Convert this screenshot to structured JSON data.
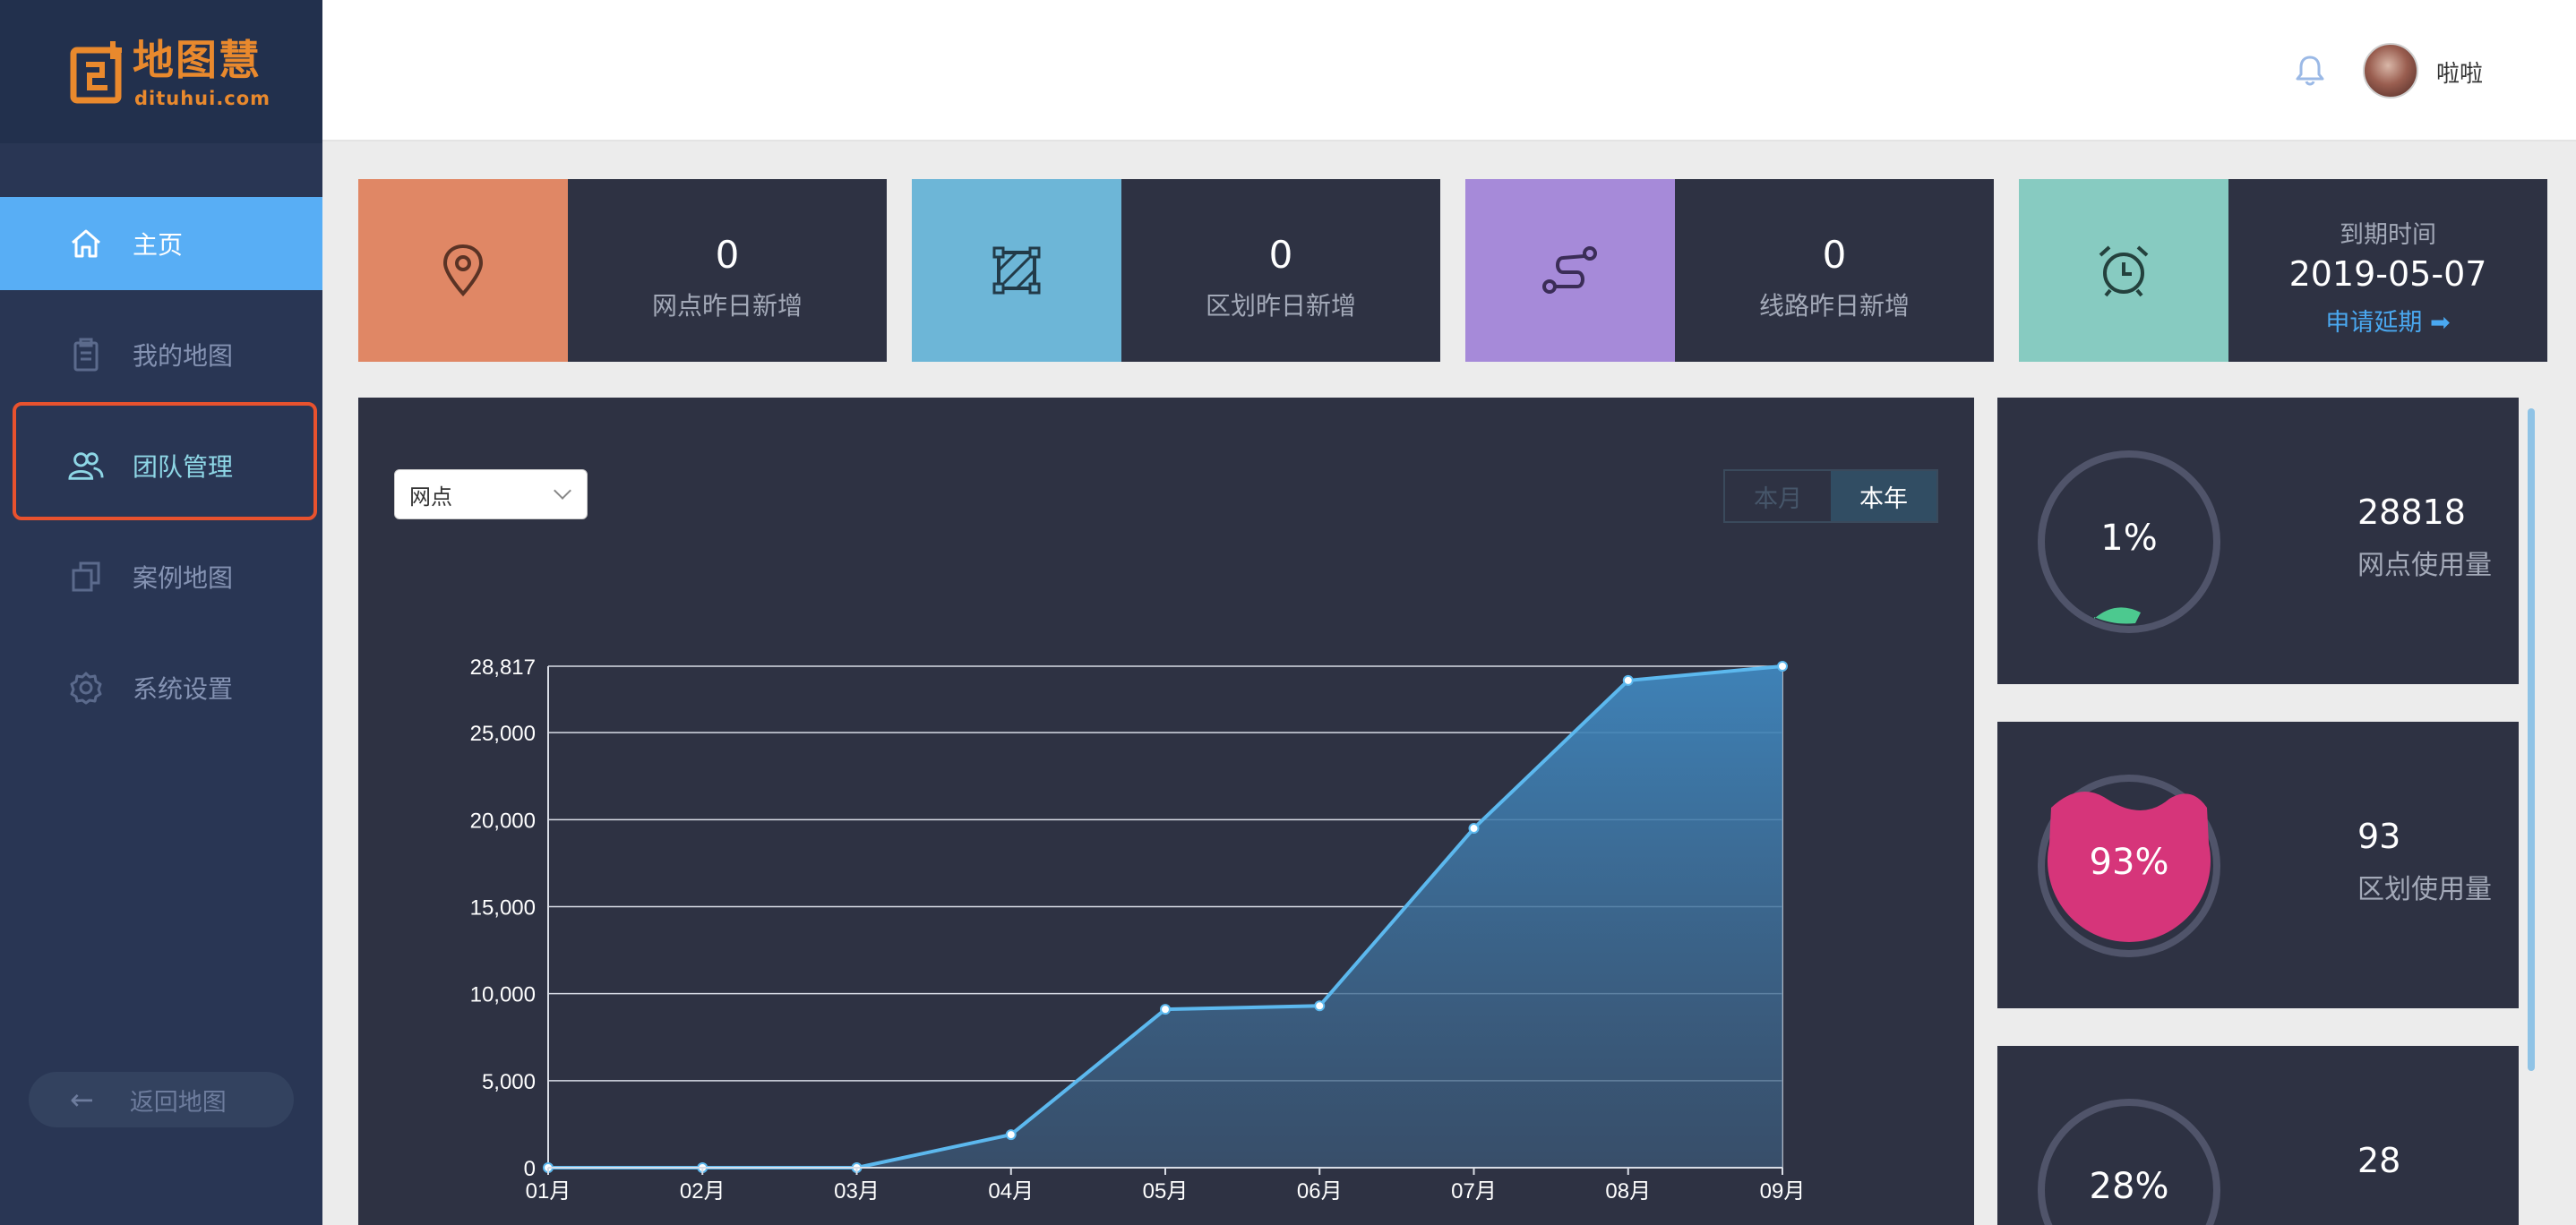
{
  "logo": {
    "name": "地图慧",
    "sub": "dituhui.com"
  },
  "sidebar": {
    "items": [
      {
        "label": "主页",
        "icon": "home-icon",
        "active": true
      },
      {
        "label": "我的地图",
        "icon": "clipboard-icon",
        "active": false
      },
      {
        "label": "团队管理",
        "icon": "team-icon",
        "active": false
      },
      {
        "label": "案例地图",
        "icon": "copy-icon",
        "active": false
      },
      {
        "label": "系统设置",
        "icon": "gear-icon",
        "active": false
      }
    ],
    "back_label": "返回地图"
  },
  "header": {
    "username": "啦啦",
    "bell_icon": "bell-icon",
    "avatar": "avatar"
  },
  "stats": [
    {
      "value": "0",
      "label": "网点昨日新增",
      "color": "#e08765",
      "icon": "location-pin-icon"
    },
    {
      "value": "0",
      "label": "区划昨日新增",
      "color": "#6db6d7",
      "icon": "polygon-icon"
    },
    {
      "value": "0",
      "label": "线路昨日新增",
      "color": "#a68ad9",
      "icon": "route-icon"
    }
  ],
  "expiry": {
    "label": "到期时间",
    "date": "2019-05-07",
    "link": "申请延期 ➡",
    "color": "#87cbc1",
    "icon": "alarm-clock-icon"
  },
  "chart_panel": {
    "select_value": "网点",
    "toggle": {
      "month": "本月",
      "year": "本年"
    }
  },
  "chart_data": {
    "type": "area",
    "x": [
      "01月",
      "02月",
      "03月",
      "04月",
      "05月",
      "06月",
      "07月",
      "08月",
      "09月"
    ],
    "values": [
      0,
      0,
      0,
      1900,
      9100,
      9300,
      19500,
      28000,
      28817
    ],
    "yticks": [
      "0",
      "5,000",
      "10,000",
      "15,000",
      "20,000",
      "25,000",
      "28,817"
    ],
    "ytick_values": [
      0,
      5000,
      10000,
      15000,
      20000,
      25000,
      28817
    ],
    "ylim": [
      0,
      28817
    ],
    "grid": true,
    "line_color": "#5cb8ee"
  },
  "gauges": [
    {
      "pct": "1%",
      "fill": 0.01,
      "value": "28818",
      "label": "网点使用量",
      "color": "#4cc98f"
    },
    {
      "pct": "93%",
      "fill": 0.93,
      "value": "93",
      "label": "区划使用量",
      "color": "#d6357a"
    },
    {
      "pct": "28%",
      "fill": 0.28,
      "value": "28",
      "label": "",
      "color": "#4cc98f"
    }
  ]
}
